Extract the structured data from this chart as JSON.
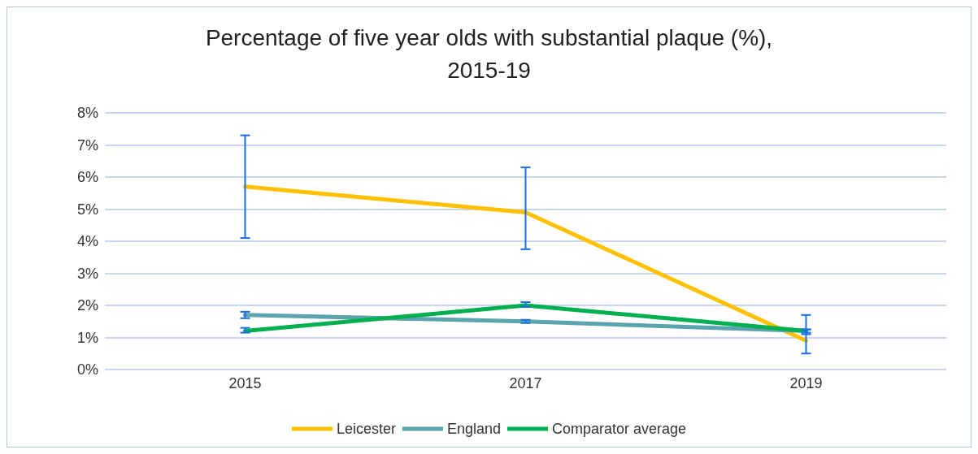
{
  "chart_data": {
    "type": "line",
    "title": "Percentage of five year olds with substantial plaque (%),\n2015-19",
    "categories": [
      "2015",
      "2017",
      "2019"
    ],
    "series": [
      {
        "name": "Leicester",
        "color": "#ffc000",
        "values": [
          5.7,
          4.9,
          0.9
        ],
        "errors": [
          [
            4.1,
            7.3
          ],
          [
            3.75,
            6.3
          ],
          [
            0.5,
            1.7
          ]
        ]
      },
      {
        "name": "England",
        "color": "#5ba3ad",
        "values": [
          1.7,
          1.5,
          1.2
        ],
        "errors": [
          [
            1.6,
            1.8
          ],
          [
            1.45,
            1.55
          ],
          [
            1.1,
            1.25
          ]
        ]
      },
      {
        "name": "Comparator average",
        "color": "#00b050",
        "values": [
          1.2,
          2.0,
          1.2
        ],
        "errors": [
          [
            1.15,
            1.3
          ],
          [
            1.95,
            2.1
          ],
          [
            1.15,
            1.25
          ]
        ]
      }
    ],
    "ylim": [
      0,
      8
    ],
    "yticks": [
      {
        "value": 0,
        "label": "0%"
      },
      {
        "value": 1,
        "label": "1%"
      },
      {
        "value": 2,
        "label": "2%"
      },
      {
        "value": 3,
        "label": "3%"
      },
      {
        "value": 4,
        "label": "4%"
      },
      {
        "value": 5,
        "label": "5%"
      },
      {
        "value": 6,
        "label": "6%"
      },
      {
        "value": 7,
        "label": "7%"
      },
      {
        "value": 8,
        "label": "8%"
      }
    ],
    "grid": "y",
    "legend": "bottom",
    "marker": "none",
    "line_style": "solid"
  }
}
